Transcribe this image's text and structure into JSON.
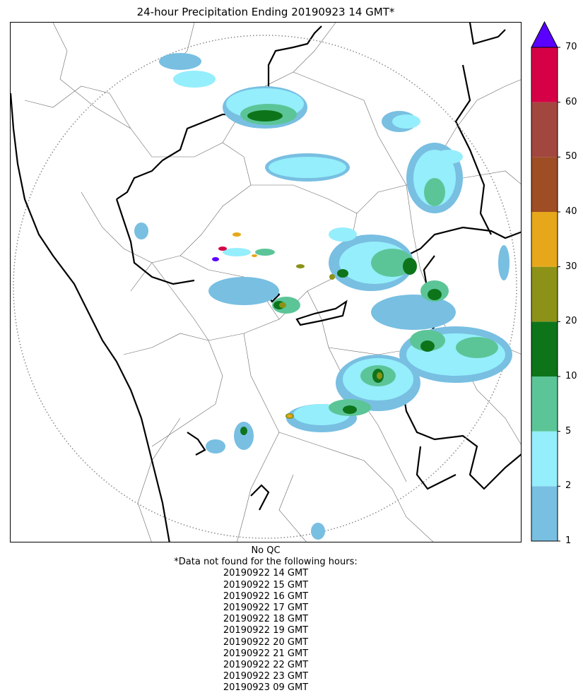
{
  "title": "24-hour Precipitation Ending 20190923 14 GMT*",
  "colorbar": {
    "ticks": [
      "1",
      "2",
      "5",
      "10",
      "20",
      "30",
      "40",
      "50",
      "60",
      "70"
    ],
    "bins": [
      {
        "from": 1,
        "to": 2,
        "color": "#78bfe2"
      },
      {
        "from": 2,
        "to": 5,
        "color": "#95eefb"
      },
      {
        "from": 5,
        "to": 10,
        "color": "#5cc598"
      },
      {
        "from": 10,
        "to": 20,
        "color": "#0d741a"
      },
      {
        "from": 20,
        "to": 30,
        "color": "#8c9217"
      },
      {
        "from": 30,
        "to": 40,
        "color": "#e6a81a"
      },
      {
        "from": 40,
        "to": 50,
        "color": "#9e4d24"
      },
      {
        "from": 50,
        "to": 60,
        "color": "#a2473f"
      },
      {
        "from": 60,
        "to": 70,
        "color": "#d60046"
      }
    ],
    "extend_over_color": "#5a00ff"
  },
  "footer": {
    "qc": "No QC",
    "missing_header": "*Data not found for the following hours:",
    "missing_hours": [
      "20190922 14 GMT",
      "20190922 15 GMT",
      "20190922 16 GMT",
      "20190922 17 GMT",
      "20190922 18 GMT",
      "20190922 19 GMT",
      "20190922 20 GMT",
      "20190922 21 GMT",
      "20190922 22 GMT",
      "20190922 23 GMT",
      "20190923 09 GMT"
    ]
  }
}
